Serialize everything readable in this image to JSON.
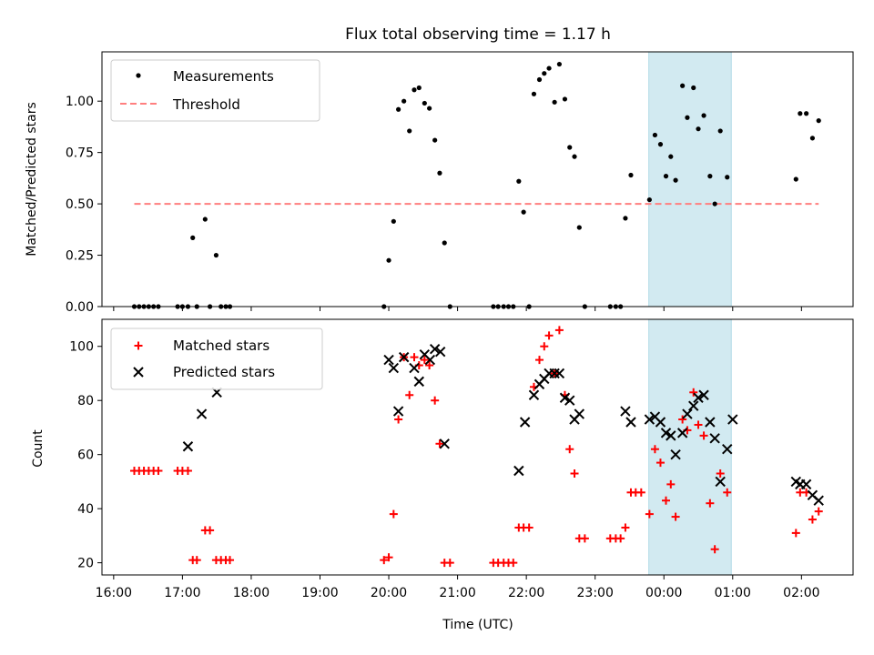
{
  "chart_data": {
    "type": "scatter",
    "title": "Flux total observing time = 1.17 h",
    "xlabel": "Time (UTC)",
    "x_unit": "hours since 00:00 (negative = previous day)",
    "xlim": [
      -8.17,
      2.75
    ],
    "xticks": [
      {
        "value": -8,
        "label": "16:00"
      },
      {
        "value": -7,
        "label": "17:00"
      },
      {
        "value": -6,
        "label": "18:00"
      },
      {
        "value": -5,
        "label": "19:00"
      },
      {
        "value": -4,
        "label": "20:00"
      },
      {
        "value": -3,
        "label": "21:00"
      },
      {
        "value": -2,
        "label": "22:00"
      },
      {
        "value": -1,
        "label": "23:00"
      },
      {
        "value": 0,
        "label": "00:00"
      },
      {
        "value": 1,
        "label": "01:00"
      },
      {
        "value": 2,
        "label": "02:00"
      }
    ],
    "shaded_span": [
      -0.22,
      0.98
    ],
    "shade_color": "#add8e6",
    "top": {
      "ylabel": "Matched/Predicted stars",
      "ylim": [
        0,
        1.24
      ],
      "yticks": [
        {
          "value": 0,
          "label": "0.00"
        },
        {
          "value": 0.25,
          "label": "0.25"
        },
        {
          "value": 0.5,
          "label": "0.50"
        },
        {
          "value": 0.75,
          "label": "0.75"
        },
        {
          "value": 1.0,
          "label": "1.00"
        }
      ],
      "legend": [
        {
          "label": "Measurements",
          "marker": "dot",
          "color": "#000000"
        },
        {
          "label": "Threshold",
          "marker": "dash",
          "color": "#ff7f7f"
        }
      ],
      "threshold": {
        "y": 0.5,
        "x_range": [
          -7.7,
          2.25
        ],
        "color": "#ff7f7f"
      },
      "measurements": [
        [
          -7.7,
          0
        ],
        [
          -7.63,
          0
        ],
        [
          -7.56,
          0
        ],
        [
          -7.49,
          0
        ],
        [
          -7.42,
          0
        ],
        [
          -7.35,
          0
        ],
        [
          -7.07,
          0
        ],
        [
          -7.0,
          0
        ],
        [
          -6.92,
          0
        ],
        [
          -6.85,
          0.335
        ],
        [
          -6.79,
          0
        ],
        [
          -6.67,
          0.425
        ],
        [
          -6.6,
          0
        ],
        [
          -6.51,
          0.25
        ],
        [
          -6.44,
          0
        ],
        [
          -6.37,
          0
        ],
        [
          -6.31,
          0
        ],
        [
          -4.07,
          0
        ],
        [
          -4.0,
          0.225
        ],
        [
          -3.93,
          0.415
        ],
        [
          -3.86,
          0.96
        ],
        [
          -3.78,
          1.0
        ],
        [
          -3.7,
          0.855
        ],
        [
          -3.63,
          1.055
        ],
        [
          -3.56,
          1.065
        ],
        [
          -3.48,
          0.99
        ],
        [
          -3.41,
          0.965
        ],
        [
          -3.33,
          0.81
        ],
        [
          -3.26,
          0.65
        ],
        [
          -3.19,
          0.31
        ],
        [
          -3.11,
          0
        ],
        [
          -2.48,
          0
        ],
        [
          -2.41,
          0
        ],
        [
          -2.33,
          0
        ],
        [
          -2.26,
          0
        ],
        [
          -2.19,
          0
        ],
        [
          -2.11,
          0.61
        ],
        [
          -2.04,
          0.46
        ],
        [
          -1.96,
          0
        ],
        [
          -1.89,
          1.035
        ],
        [
          -1.81,
          1.105
        ],
        [
          -1.74,
          1.135
        ],
        [
          -1.67,
          1.16
        ],
        [
          -1.59,
          0.995
        ],
        [
          -1.52,
          1.18
        ],
        [
          -1.44,
          1.01
        ],
        [
          -1.37,
          0.775
        ],
        [
          -1.3,
          0.73
        ],
        [
          -1.23,
          0.385
        ],
        [
          -1.15,
          0
        ],
        [
          -0.78,
          0
        ],
        [
          -0.7,
          0
        ],
        [
          -0.63,
          0
        ],
        [
          -0.56,
          0.43
        ],
        [
          -0.48,
          0.64
        ],
        [
          -0.21,
          0.52
        ],
        [
          -0.13,
          0.835
        ],
        [
          -0.05,
          0.79
        ],
        [
          0.03,
          0.635
        ],
        [
          0.1,
          0.73
        ],
        [
          0.17,
          0.615
        ],
        [
          0.27,
          1.075
        ],
        [
          0.34,
          0.92
        ],
        [
          0.43,
          1.065
        ],
        [
          0.5,
          0.865
        ],
        [
          0.58,
          0.93
        ],
        [
          0.67,
          0.635
        ],
        [
          0.74,
          0.5
        ],
        [
          0.82,
          0.855
        ],
        [
          0.92,
          0.63
        ],
        [
          1.92,
          0.62
        ],
        [
          1.98,
          0.94
        ],
        [
          2.07,
          0.94
        ],
        [
          2.16,
          0.82
        ],
        [
          2.25,
          0.905
        ]
      ]
    },
    "bottom": {
      "ylabel": "Count",
      "ylim": [
        15.5,
        110
      ],
      "yticks": [
        {
          "value": 20,
          "label": "20"
        },
        {
          "value": 40,
          "label": "40"
        },
        {
          "value": 60,
          "label": "60"
        },
        {
          "value": 80,
          "label": "80"
        },
        {
          "value": 100,
          "label": "100"
        }
      ],
      "legend": [
        {
          "label": "Matched stars",
          "marker": "plus",
          "color": "#ff0000"
        },
        {
          "label": "Predicted stars",
          "marker": "x",
          "color": "#000000"
        }
      ],
      "matched": [
        [
          -7.7,
          54
        ],
        [
          -7.63,
          54
        ],
        [
          -7.56,
          54
        ],
        [
          -7.49,
          54
        ],
        [
          -7.42,
          54
        ],
        [
          -7.35,
          54
        ],
        [
          -7.07,
          54
        ],
        [
          -7.0,
          54
        ],
        [
          -6.92,
          54
        ],
        [
          -6.85,
          21
        ],
        [
          -6.79,
          21
        ],
        [
          -6.67,
          32
        ],
        [
          -6.6,
          32
        ],
        [
          -6.51,
          21
        ],
        [
          -6.44,
          21
        ],
        [
          -6.37,
          21
        ],
        [
          -6.31,
          21
        ],
        [
          -4.07,
          21
        ],
        [
          -4.0,
          22
        ],
        [
          -3.93,
          38
        ],
        [
          -3.86,
          73
        ],
        [
          -3.78,
          96
        ],
        [
          -3.7,
          82
        ],
        [
          -3.63,
          96
        ],
        [
          -3.56,
          93
        ],
        [
          -3.48,
          95
        ],
        [
          -3.41,
          93
        ],
        [
          -3.33,
          80
        ],
        [
          -3.26,
          64
        ],
        [
          -3.19,
          20
        ],
        [
          -3.11,
          20
        ],
        [
          -2.48,
          20
        ],
        [
          -2.41,
          20
        ],
        [
          -2.33,
          20
        ],
        [
          -2.26,
          20
        ],
        [
          -2.19,
          20
        ],
        [
          -2.11,
          33
        ],
        [
          -2.04,
          33
        ],
        [
          -1.96,
          33
        ],
        [
          -1.89,
          85
        ],
        [
          -1.81,
          95
        ],
        [
          -1.74,
          100
        ],
        [
          -1.67,
          104
        ],
        [
          -1.59,
          90
        ],
        [
          -1.52,
          106
        ],
        [
          -1.44,
          82
        ],
        [
          -1.37,
          62
        ],
        [
          -1.3,
          53
        ],
        [
          -1.23,
          29
        ],
        [
          -1.15,
          29
        ],
        [
          -0.78,
          29
        ],
        [
          -0.7,
          29
        ],
        [
          -0.63,
          29
        ],
        [
          -0.56,
          33
        ],
        [
          -0.48,
          46
        ],
        [
          -0.41,
          46
        ],
        [
          -0.33,
          46
        ],
        [
          -0.21,
          38
        ],
        [
          -0.13,
          62
        ],
        [
          -0.05,
          57
        ],
        [
          0.03,
          43
        ],
        [
          0.1,
          49
        ],
        [
          0.17,
          37
        ],
        [
          0.27,
          73
        ],
        [
          0.34,
          69
        ],
        [
          0.43,
          83
        ],
        [
          0.5,
          71
        ],
        [
          0.58,
          67
        ],
        [
          0.67,
          42
        ],
        [
          0.74,
          25
        ],
        [
          0.82,
          53
        ],
        [
          0.92,
          46
        ],
        [
          1.92,
          31
        ],
        [
          1.98,
          46
        ],
        [
          2.07,
          46
        ],
        [
          2.16,
          36
        ],
        [
          2.25,
          39
        ]
      ],
      "predicted": [
        [
          -6.92,
          63
        ],
        [
          -6.72,
          75
        ],
        [
          -6.5,
          83
        ],
        [
          -4.0,
          95
        ],
        [
          -3.93,
          92
        ],
        [
          -3.86,
          76
        ],
        [
          -3.78,
          96
        ],
        [
          -3.63,
          92
        ],
        [
          -3.56,
          87
        ],
        [
          -3.48,
          97
        ],
        [
          -3.4,
          95
        ],
        [
          -3.33,
          99
        ],
        [
          -3.25,
          98
        ],
        [
          -3.19,
          64
        ],
        [
          -2.11,
          54
        ],
        [
          -2.02,
          72
        ],
        [
          -1.89,
          82
        ],
        [
          -1.81,
          86
        ],
        [
          -1.74,
          88
        ],
        [
          -1.67,
          90
        ],
        [
          -1.59,
          90
        ],
        [
          -1.52,
          90
        ],
        [
          -1.44,
          81
        ],
        [
          -1.37,
          80
        ],
        [
          -1.3,
          73
        ],
        [
          -1.23,
          75
        ],
        [
          -0.56,
          76
        ],
        [
          -0.48,
          72
        ],
        [
          -0.21,
          73
        ],
        [
          -0.13,
          74
        ],
        [
          -0.05,
          72
        ],
        [
          0.03,
          68
        ],
        [
          0.1,
          67
        ],
        [
          0.17,
          60
        ],
        [
          0.27,
          68
        ],
        [
          0.34,
          75
        ],
        [
          0.43,
          78
        ],
        [
          0.5,
          81
        ],
        [
          0.58,
          82
        ],
        [
          0.67,
          72
        ],
        [
          0.74,
          66
        ],
        [
          0.82,
          50
        ],
        [
          0.92,
          62
        ],
        [
          1.0,
          73
        ],
        [
          1.92,
          50
        ],
        [
          1.98,
          49
        ],
        [
          2.07,
          49
        ],
        [
          2.16,
          45
        ],
        [
          2.25,
          43
        ]
      ]
    }
  }
}
